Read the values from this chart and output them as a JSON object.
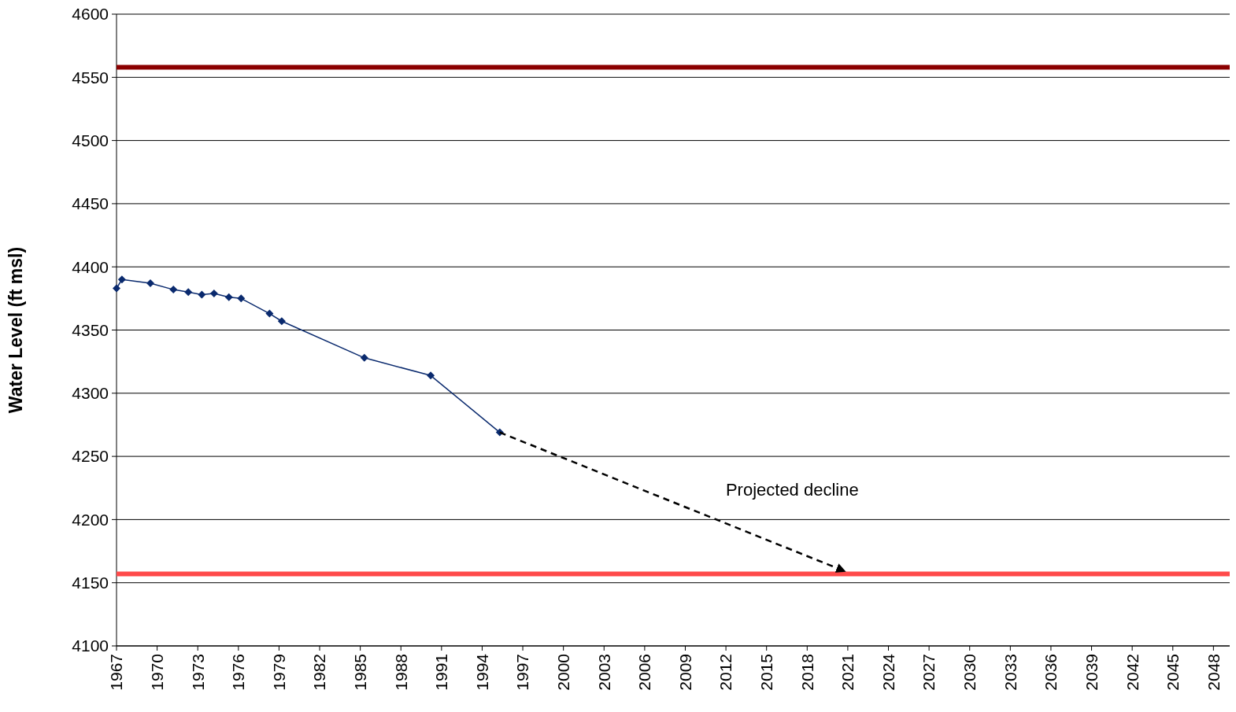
{
  "chart_data": {
    "type": "line",
    "ylabel": "Water Level (ft msl)",
    "xlim": [
      1967,
      2049.2
    ],
    "xticks": [
      1967,
      1970,
      1973,
      1976,
      1979,
      1982,
      1985,
      1988,
      1991,
      1994,
      1997,
      2000,
      2003,
      2006,
      2009,
      2012,
      2015,
      2018,
      2021,
      2024,
      2027,
      2030,
      2033,
      2036,
      2039,
      2042,
      2045,
      2048
    ],
    "ylim": [
      4100,
      4600
    ],
    "yticks": [
      4100,
      4150,
      4200,
      4250,
      4300,
      4350,
      4400,
      4450,
      4500,
      4550,
      4600
    ],
    "grid": "y",
    "series": [
      {
        "color": "#0a2a6e",
        "marker": "diamond",
        "line_style": "solid",
        "x": [
          1967,
          1967.4,
          1969.5,
          1971.2,
          1972.3,
          1973.3,
          1974.2,
          1975.3,
          1976.2,
          1978.3,
          1979.2,
          1985.3,
          1990.2,
          1995.3
        ],
        "values": [
          4383,
          4390,
          4387,
          4382,
          4380,
          4378,
          4379,
          4376,
          4375,
          4363,
          4357,
          4328,
          4314,
          4269
        ]
      },
      {
        "color": "#000000",
        "marker": "none",
        "line_style": "dashed",
        "x": [
          1995.3,
          2020.8
        ],
        "values": [
          4269,
          4159
        ]
      }
    ],
    "ref_lines": [
      {
        "axis": "y",
        "value": 4558,
        "color": "#8b0000"
      },
      {
        "axis": "y",
        "value": 4157,
        "color": "#ff4a4a"
      }
    ],
    "annotations": [
      "Projected decline"
    ]
  }
}
